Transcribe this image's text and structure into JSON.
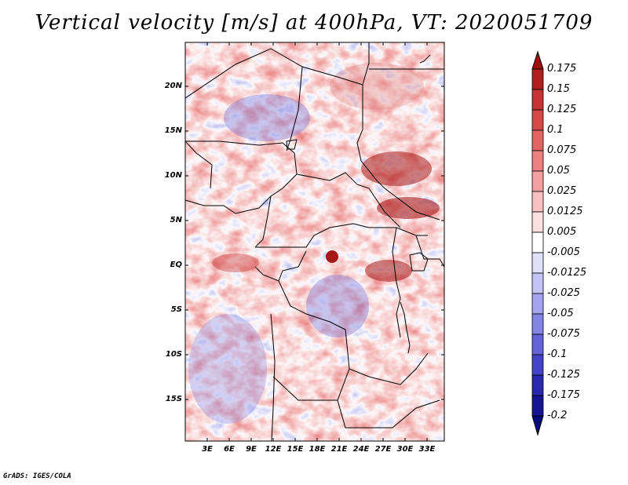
{
  "title": "Vertical velocity [m/s] at 400hPa, VT: 2020051709",
  "credit": "GrADS: IGES/COLA",
  "y_axis_labels": [
    "20N",
    "15N",
    "10N",
    "5N",
    "EQ",
    "5S",
    "10S",
    "15S"
  ],
  "x_axis_labels": [
    "3E",
    "6E",
    "9E",
    "12E",
    "15E",
    "18E",
    "21E",
    "24E",
    "27E",
    "30E",
    "33E"
  ],
  "colorbar": {
    "labels": [
      "0.175",
      "0.15",
      "0.125",
      "0.1",
      "0.075",
      "0.05",
      "0.025",
      "0.0125",
      "0.005",
      "-0.005",
      "-0.0125",
      "-0.025",
      "-0.05",
      "-0.075",
      "-0.1",
      "-0.125",
      "-0.175",
      "-0.2"
    ],
    "colors": [
      "#9e1010",
      "#b41e1e",
      "#c83232",
      "#d84848",
      "#e46464",
      "#ec8080",
      "#f4a0a0",
      "#f8c0c0",
      "#fce0e0",
      "#ffffff",
      "#e0e0fa",
      "#c4c4f4",
      "#a4a4ee",
      "#8484e4",
      "#6464d8",
      "#4444c8",
      "#2828b0",
      "#141494",
      "#0a0a78"
    ]
  }
}
